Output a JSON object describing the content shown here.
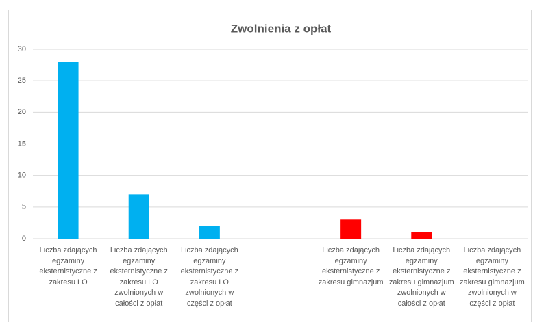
{
  "chart_data": {
    "type": "bar",
    "title": "Zwolnienia z opłat",
    "categories": [
      "Liczba zdających egzaminy eksternistyczne z zakresu LO",
      "Liczba zdających egzaminy eksternistyczne z zakresu LO zwolnionych w całości z opłat",
      "Liczba zdających egzaminy eksternistyczne z zakresu LO zwolnionych w części z opłat",
      null,
      "Liczba zdających egzaminy eksternistyczne z zakresu gimnazjum",
      "Liczba zdających egzaminy eksternistyczne z zakresu gimnazjum zwolnionych w całości z opłat",
      "Liczba zdających egzaminy eksternistyczne z zakresu gimnazjum zwolnionych w części z opłat"
    ],
    "values": [
      28,
      7,
      2,
      null,
      3,
      1,
      0
    ],
    "colors": [
      "#00b0f0",
      "#00b0f0",
      "#00b0f0",
      null,
      "#ff0000",
      "#ff0000",
      "#ff0000"
    ],
    "ylim": [
      0,
      30
    ],
    "yticks": [
      0,
      5,
      10,
      15,
      20,
      25,
      30
    ],
    "grid": true
  }
}
